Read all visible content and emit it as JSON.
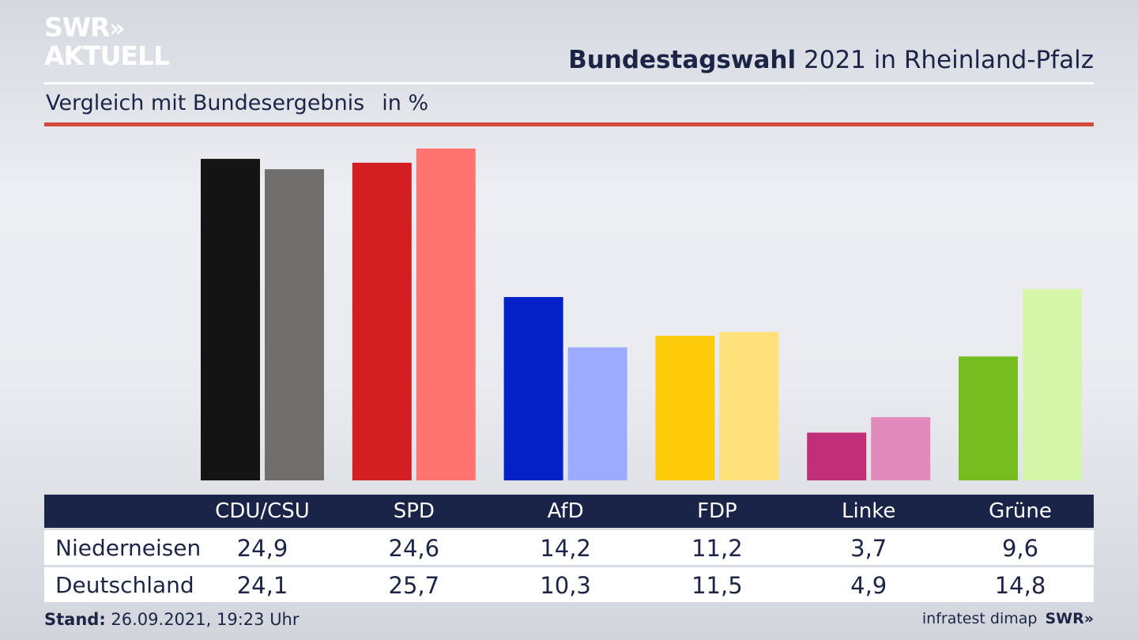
{
  "brand": {
    "line1": "SWR",
    "arrows": "»",
    "line2": "AKTUELL"
  },
  "header": {
    "title_bold": "Bundestagswahl",
    "title_rest": "2021 in Rheinland-Pfalz"
  },
  "subheader": {
    "text": "Vergleich mit Bundesergebnis",
    "unit": "in %"
  },
  "colors": {
    "accent_red": "#d24a3c",
    "table_header": "#1a2448",
    "text": "#1d2547",
    "parties": {
      "CDU/CSU": [
        "#141414",
        "#706f6d"
      ],
      "SPD": [
        "#d41f22",
        "#ff7470"
      ],
      "AfD": [
        "#0421c7",
        "#9dabfe"
      ],
      "FDP": [
        "#fecb0a",
        "#fee17a"
      ],
      "Linke": [
        "#c02f77",
        "#e08bbb"
      ],
      "Grüne": [
        "#78bd1f",
        "#d6f7a9"
      ]
    }
  },
  "chart_data": {
    "type": "bar",
    "categories": [
      "CDU/CSU",
      "SPD",
      "AfD",
      "FDP",
      "Linke",
      "Grüne"
    ],
    "series": [
      {
        "name": "Niederneisen",
        "values": [
          24.9,
          24.6,
          14.2,
          11.2,
          3.7,
          9.6
        ],
        "labels": [
          "24,9",
          "24,6",
          "14,2",
          "11,2",
          "3,7",
          "9,6"
        ]
      },
      {
        "name": "Deutschland",
        "values": [
          24.1,
          25.7,
          10.3,
          11.5,
          4.9,
          14.8
        ],
        "labels": [
          "24,1",
          "25,7",
          "10,3",
          "11,5",
          "4,9",
          "14,8"
        ]
      }
    ],
    "ylim": [
      0,
      25.7
    ],
    "grid": false,
    "legend": "table-below"
  },
  "footer": {
    "stand_label": "Stand:",
    "stand_value": "26.09.2021, 19:23 Uhr",
    "source": "infratest dimap",
    "brand": "SWR",
    "brand_arrows": "»"
  }
}
